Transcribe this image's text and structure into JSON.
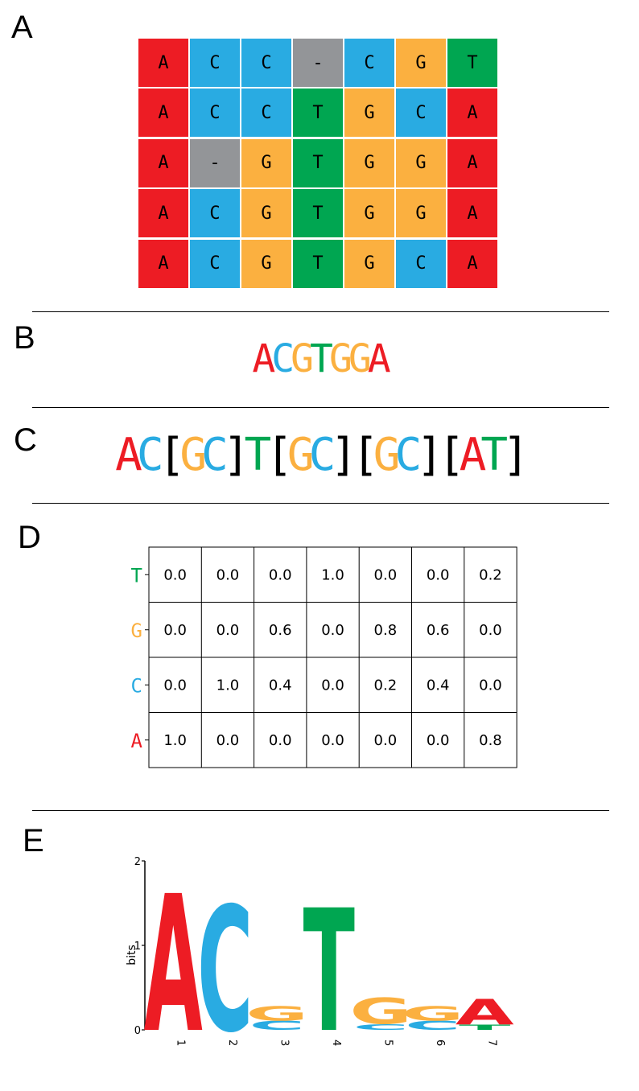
{
  "colors": {
    "A": "#ed1c24",
    "C": "#29abe2",
    "G": "#fbb040",
    "T": "#00a651",
    "-": "#939598"
  },
  "panels": {
    "a": "A",
    "b": "B",
    "c": "C",
    "d": "D",
    "e": "E"
  },
  "alignment": [
    [
      "A",
      "C",
      "C",
      "-",
      "C",
      "G",
      "T"
    ],
    [
      "A",
      "C",
      "C",
      "T",
      "G",
      "C",
      "A"
    ],
    [
      "A",
      "-",
      "G",
      "T",
      "G",
      "G",
      "A"
    ],
    [
      "A",
      "C",
      "G",
      "T",
      "G",
      "G",
      "A"
    ],
    [
      "A",
      "C",
      "G",
      "T",
      "G",
      "C",
      "A"
    ]
  ],
  "consensus": {
    "b": [
      "A",
      "C",
      "G",
      "T",
      "G",
      "G",
      "A"
    ],
    "c": [
      {
        "t": "A"
      },
      {
        "t": "C"
      },
      {
        "t": "["
      },
      {
        "t": "G"
      },
      {
        "t": "C"
      },
      {
        "t": "]"
      },
      {
        "t": "T"
      },
      {
        "t": "["
      },
      {
        "t": "G"
      },
      {
        "t": "C"
      },
      {
        "t": "]"
      },
      {
        "t": "["
      },
      {
        "t": "G"
      },
      {
        "t": "C"
      },
      {
        "t": "]"
      },
      {
        "t": "["
      },
      {
        "t": "A"
      },
      {
        "t": "T"
      },
      {
        "t": "]"
      }
    ]
  },
  "matrix": {
    "row_labels": [
      "T",
      "G",
      "C",
      "A"
    ],
    "values": [
      [
        "0.0",
        "0.0",
        "0.0",
        "1.0",
        "0.0",
        "0.0",
        "0.2"
      ],
      [
        "0.0",
        "0.0",
        "0.6",
        "0.0",
        "0.8",
        "0.6",
        "0.0"
      ],
      [
        "0.0",
        "1.0",
        "0.4",
        "0.0",
        "0.2",
        "0.4",
        "0.0"
      ],
      [
        "1.0",
        "0.0",
        "0.0",
        "0.0",
        "0.0",
        "0.0",
        "0.8"
      ]
    ]
  },
  "chart_data": {
    "type": "bar",
    "ylabel": "bits",
    "ylim": [
      0,
      2
    ],
    "yticks": [
      "0",
      "1",
      "2"
    ],
    "categories": [
      "1",
      "2",
      "3",
      "4",
      "5",
      "6",
      "7"
    ],
    "stacks": [
      [
        {
          "letter": "A",
          "bits": 1.62
        }
      ],
      [
        {
          "letter": "C",
          "bits": 1.48
        }
      ],
      [
        {
          "letter": "C",
          "bits": 0.11
        },
        {
          "letter": "G",
          "bits": 0.17
        }
      ],
      [
        {
          "letter": "T",
          "bits": 1.45
        }
      ],
      [
        {
          "letter": "C",
          "bits": 0.07
        },
        {
          "letter": "G",
          "bits": 0.31
        }
      ],
      [
        {
          "letter": "C",
          "bits": 0.11
        },
        {
          "letter": "G",
          "bits": 0.17
        }
      ],
      [
        {
          "letter": "T",
          "bits": 0.06
        },
        {
          "letter": "A",
          "bits": 0.3
        }
      ]
    ]
  }
}
